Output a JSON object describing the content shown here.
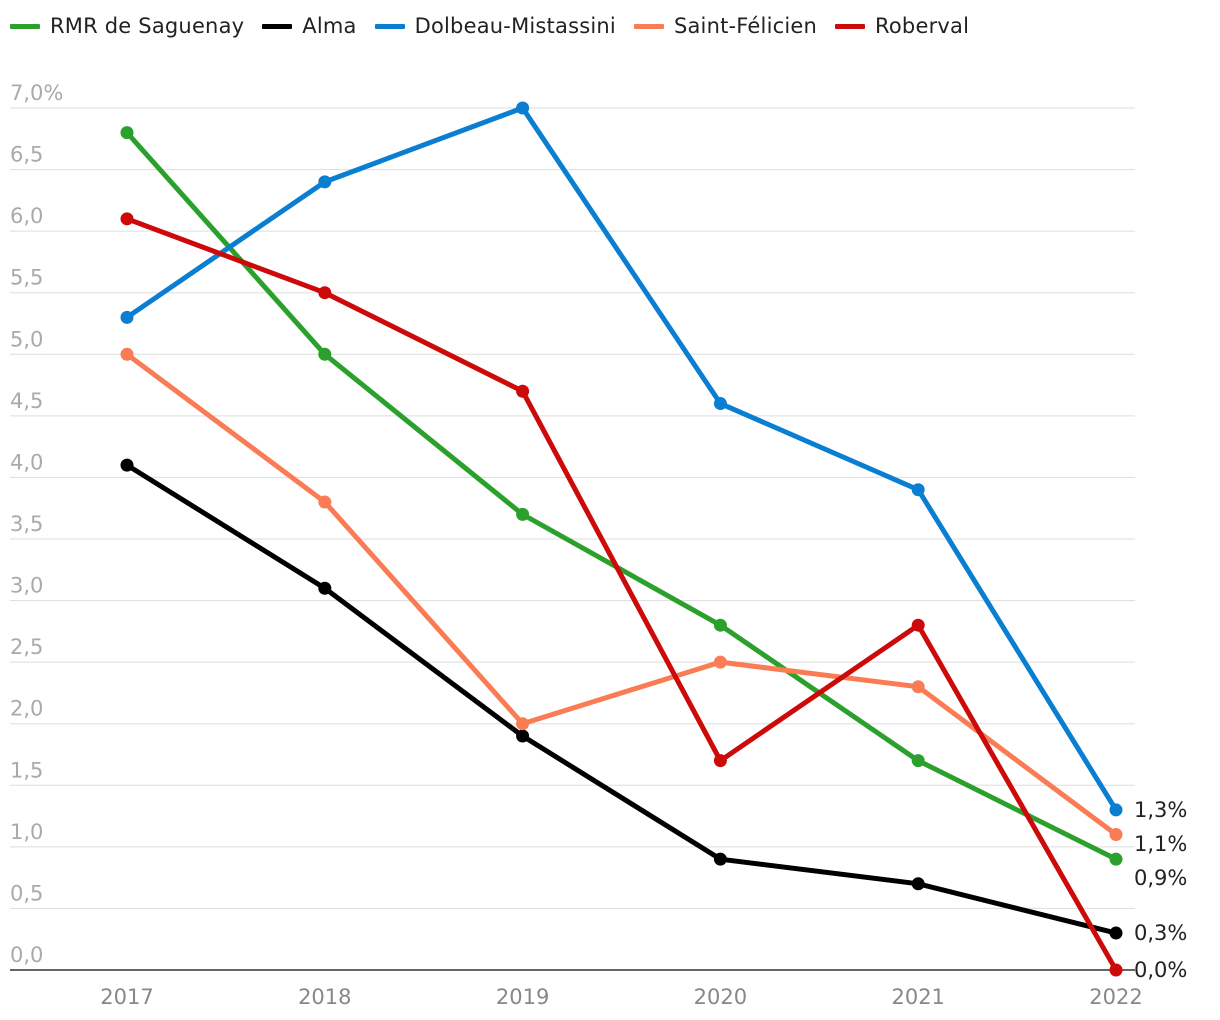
{
  "chart_data": {
    "type": "line",
    "x": [
      "2017",
      "2018",
      "2019",
      "2020",
      "2021",
      "2022"
    ],
    "y_ticks": [
      "7,0%",
      "6,5",
      "6,0",
      "5,5",
      "5,0",
      "4,5",
      "4,0",
      "3,5",
      "3,0",
      "2,5",
      "2,0",
      "1,5",
      "1,0",
      "0,5",
      "0,0"
    ],
    "ylim": [
      0,
      7
    ],
    "grid": true,
    "legend_position": "top-left",
    "series": [
      {
        "name": "RMR de Saguenay",
        "color": "#2ca02c",
        "values": [
          6.8,
          5.0,
          3.7,
          2.8,
          1.7,
          0.9
        ],
        "end_label": "0,9%"
      },
      {
        "name": "Alma",
        "color": "#000000",
        "values": [
          4.1,
          3.1,
          1.9,
          0.9,
          0.7,
          0.3
        ],
        "end_label": "0,3%"
      },
      {
        "name": "Dolbeau-Mistassini",
        "color": "#0a7fd1",
        "values": [
          5.3,
          6.4,
          7.0,
          4.6,
          3.9,
          1.3
        ],
        "end_label": "1,3%"
      },
      {
        "name": "Saint-Félicien",
        "color": "#f97c55",
        "values": [
          5.0,
          3.8,
          2.0,
          2.5,
          2.3,
          1.1
        ],
        "end_label": "1,1%"
      },
      {
        "name": "Roberval",
        "color": "#cc0a0a",
        "values": [
          6.1,
          5.5,
          4.7,
          1.7,
          2.8,
          0.0
        ],
        "end_label": "0,0%"
      }
    ]
  }
}
